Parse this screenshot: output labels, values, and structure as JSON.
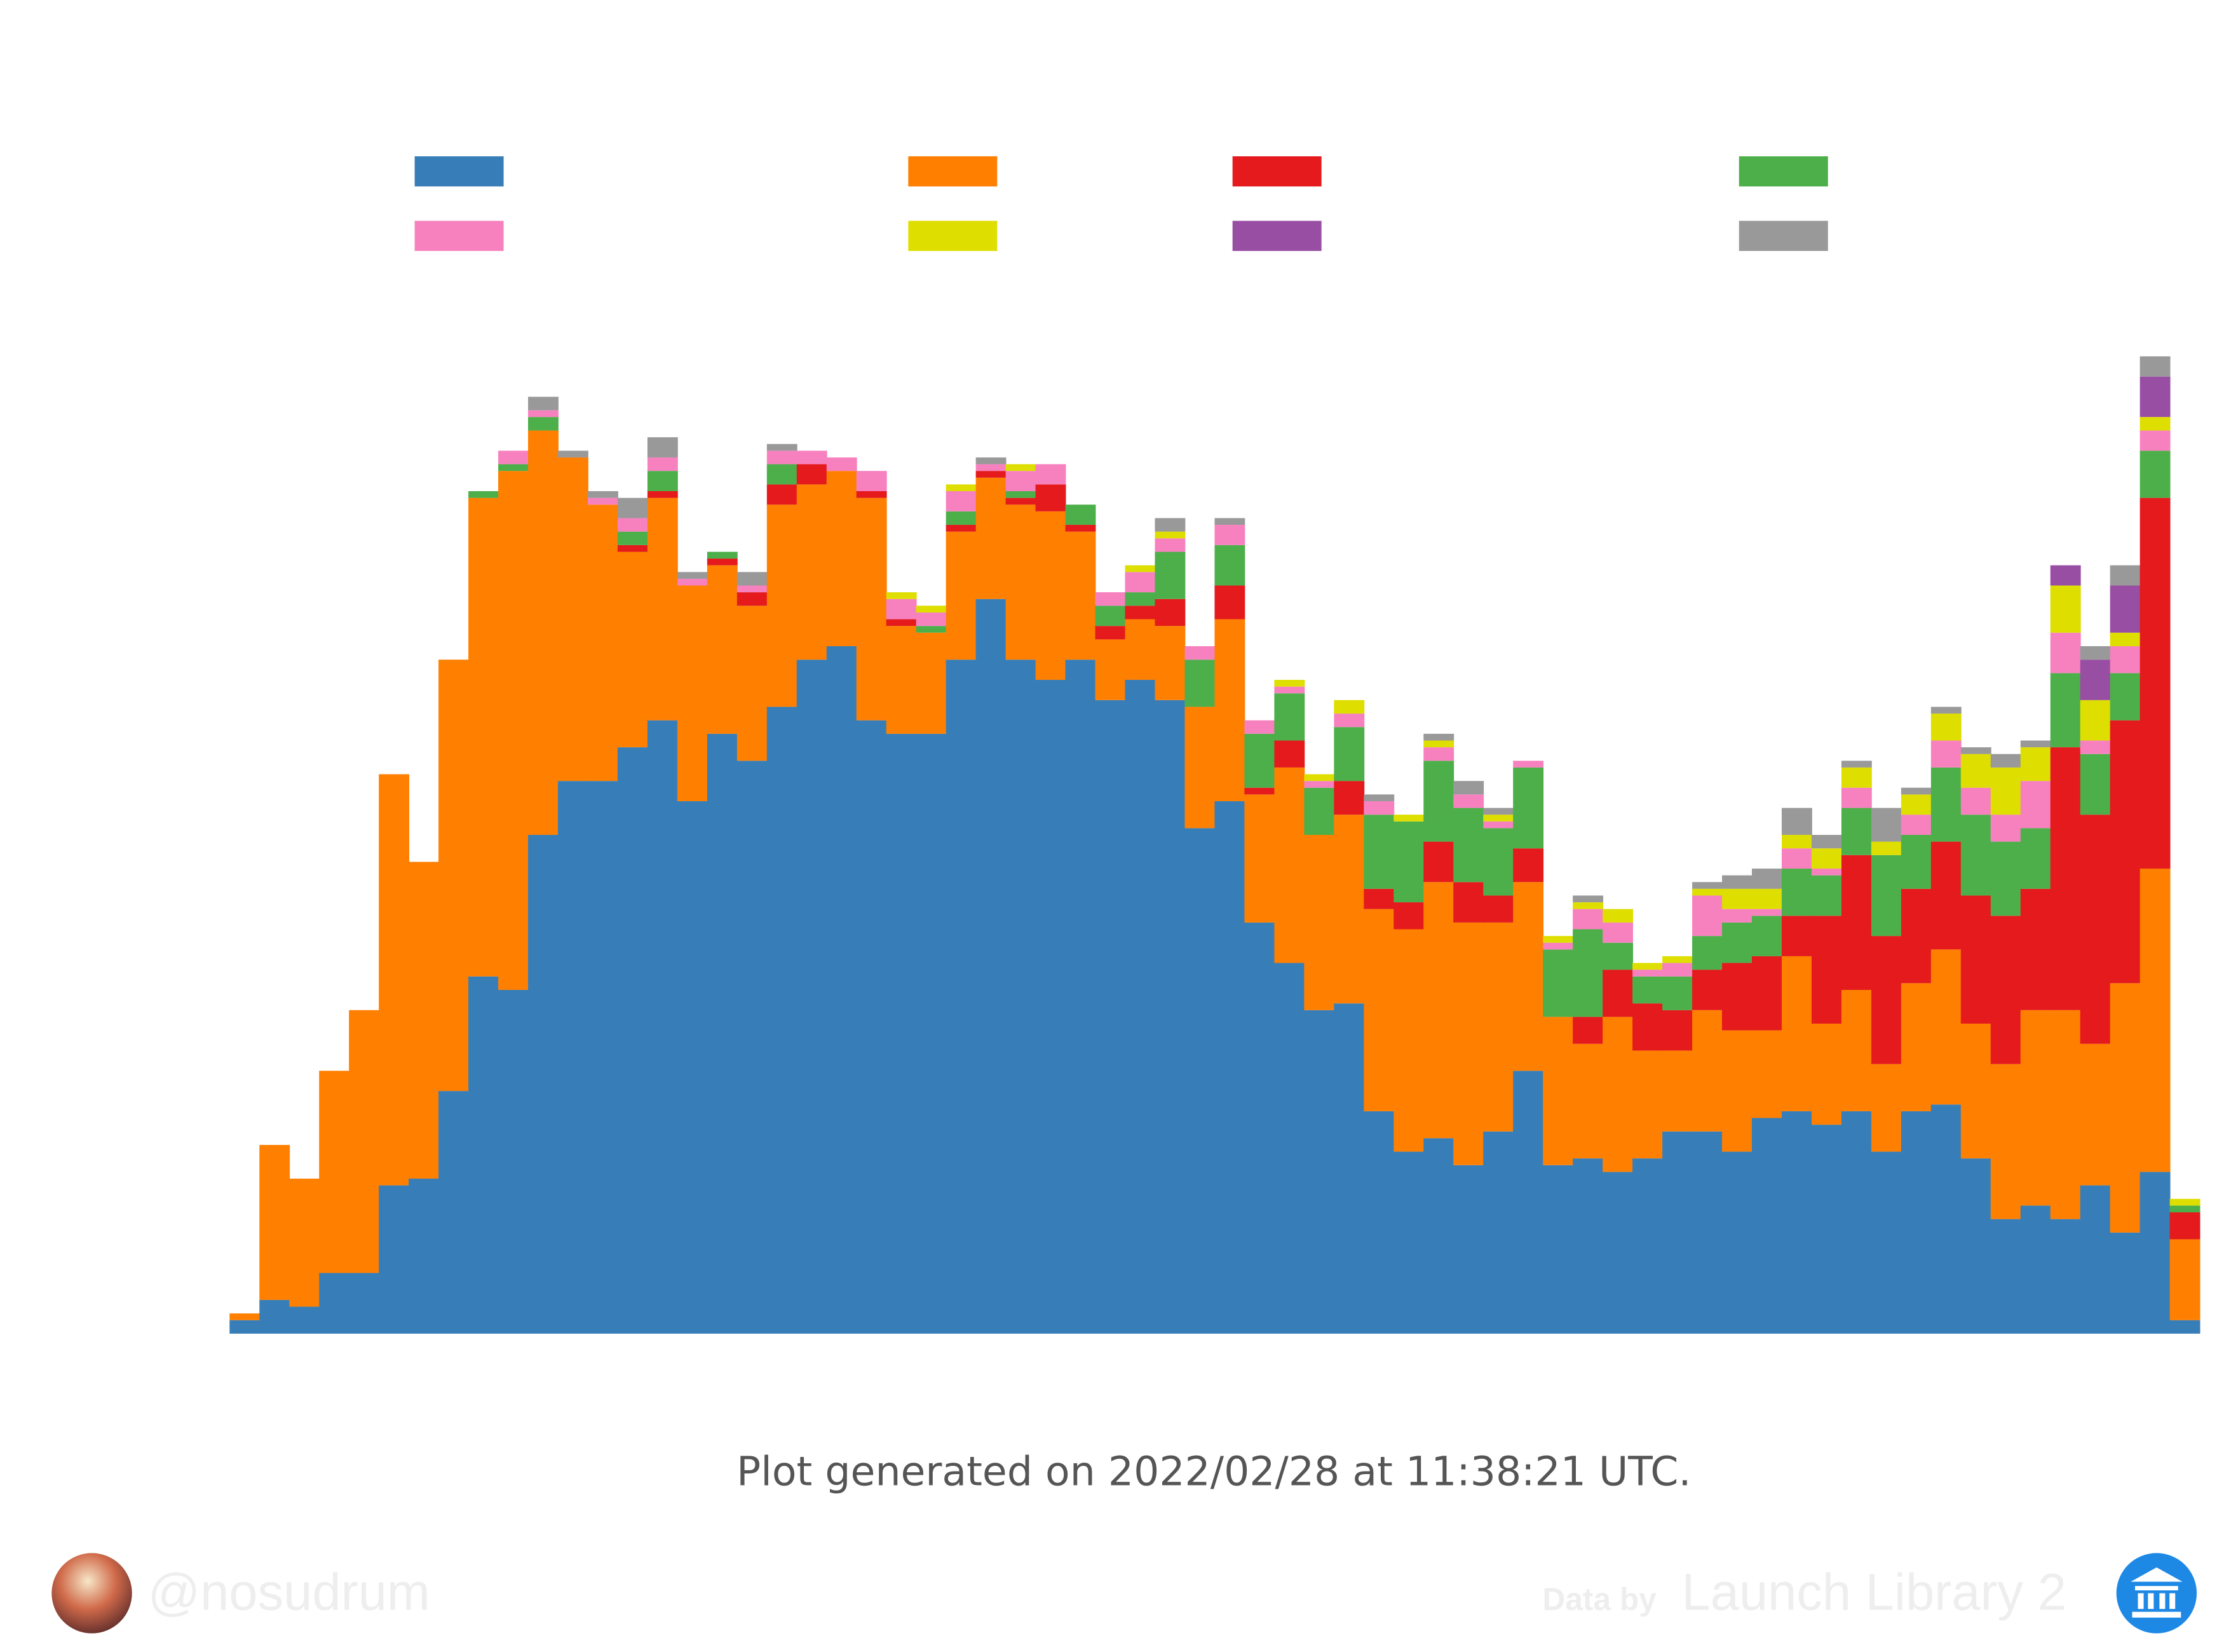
{
  "chart_data": {
    "type": "stacked_bar",
    "categories": [
      null,
      null,
      null,
      null,
      null,
      null,
      null,
      null,
      null,
      null,
      null,
      null,
      null,
      null,
      null,
      null,
      null,
      null,
      null,
      null,
      null,
      null,
      null,
      null,
      null,
      null,
      null,
      null,
      null,
      null,
      null,
      null,
      null,
      null,
      null,
      null,
      null,
      null,
      null,
      null,
      null,
      null,
      null,
      null,
      null,
      null,
      null,
      null,
      null,
      null,
      null,
      null,
      null,
      null,
      null,
      null,
      null,
      null,
      null,
      null,
      null,
      null,
      null,
      null,
      null,
      null
    ],
    "ylim": [
      0,
      160
    ],
    "series": [
      {
        "color": "#377eb8",
        "values": [
          2,
          5,
          4,
          9,
          9,
          22,
          23,
          36,
          53,
          51,
          74,
          82,
          82,
          87,
          91,
          79,
          89,
          85,
          93,
          100,
          102,
          91,
          89,
          89,
          100,
          109,
          100,
          97,
          100,
          94,
          97,
          94,
          75,
          79,
          61,
          55,
          48,
          49,
          33,
          27,
          29,
          25,
          30,
          39,
          25,
          26,
          24,
          26,
          30,
          30,
          27,
          32,
          33,
          31,
          33,
          27,
          33,
          34,
          26,
          17,
          19,
          17,
          22,
          15,
          24,
          2
        ]
      },
      {
        "color": "#ff7f00",
        "values": [
          1,
          23,
          19,
          30,
          39,
          61,
          47,
          64,
          71,
          77,
          60,
          48,
          41,
          29,
          33,
          32,
          25,
          23,
          30,
          26,
          26,
          33,
          16,
          15,
          19,
          18,
          23,
          25,
          19,
          9,
          9,
          11,
          18,
          27,
          19,
          29,
          26,
          28,
          30,
          33,
          38,
          36,
          31,
          28,
          22,
          17,
          23,
          16,
          12,
          18,
          18,
          13,
          23,
          15,
          18,
          13,
          19,
          23,
          20,
          23,
          29,
          31,
          21,
          37,
          45,
          12
        ]
      },
      {
        "color": "#e41a1c",
        "values": [
          0,
          0,
          0,
          0,
          0,
          0,
          0,
          0,
          0,
          0,
          0,
          0,
          0,
          1,
          1,
          0,
          1,
          2,
          3,
          3,
          0,
          1,
          1,
          0,
          1,
          1,
          1,
          4,
          1,
          2,
          2,
          4,
          0,
          5,
          1,
          4,
          0,
          5,
          3,
          4,
          6,
          6,
          4,
          5,
          0,
          4,
          7,
          7,
          6,
          6,
          10,
          11,
          6,
          16,
          20,
          19,
          14,
          16,
          19,
          22,
          18,
          39,
          34,
          39,
          55,
          4
        ]
      },
      {
        "color": "#4daf4a",
        "values": [
          0,
          0,
          0,
          0,
          0,
          0,
          0,
          0,
          1,
          1,
          2,
          0,
          0,
          2,
          3,
          0,
          1,
          0,
          3,
          0,
          0,
          0,
          0,
          1,
          2,
          0,
          1,
          0,
          3,
          3,
          2,
          7,
          7,
          6,
          8,
          7,
          7,
          8,
          11,
          12,
          12,
          11,
          10,
          12,
          10,
          13,
          4,
          4,
          5,
          5,
          6,
          6,
          7,
          6,
          7,
          12,
          8,
          11,
          12,
          11,
          9,
          11,
          9,
          7,
          7,
          1
        ]
      },
      {
        "color": "#f781bf",
        "values": [
          0,
          0,
          0,
          0,
          0,
          0,
          0,
          0,
          0,
          2,
          1,
          0,
          1,
          2,
          2,
          1,
          0,
          1,
          2,
          2,
          2,
          3,
          3,
          2,
          3,
          1,
          3,
          3,
          0,
          2,
          3,
          2,
          2,
          3,
          2,
          1,
          1,
          2,
          2,
          0,
          2,
          2,
          1,
          1,
          1,
          3,
          3,
          1,
          2,
          6,
          2,
          1,
          3,
          1,
          3,
          0,
          3,
          4,
          4,
          4,
          7,
          6,
          2,
          4,
          3,
          0
        ]
      },
      {
        "color": "#dede00",
        "values": [
          0,
          0,
          0,
          0,
          0,
          0,
          0,
          0,
          0,
          0,
          0,
          0,
          0,
          0,
          0,
          0,
          0,
          0,
          0,
          0,
          0,
          0,
          1,
          1,
          1,
          0,
          1,
          0,
          0,
          0,
          1,
          1,
          0,
          0,
          0,
          1,
          1,
          2,
          0,
          1,
          1,
          0,
          1,
          0,
          1,
          1,
          2,
          1,
          1,
          1,
          3,
          3,
          2,
          3,
          3,
          2,
          3,
          4,
          5,
          7,
          5,
          7,
          6,
          2,
          2,
          1
        ]
      },
      {
        "color": "#984ea3",
        "values": [
          0,
          0,
          0,
          0,
          0,
          0,
          0,
          0,
          0,
          0,
          0,
          0,
          0,
          0,
          0,
          0,
          0,
          0,
          0,
          0,
          0,
          0,
          0,
          0,
          0,
          0,
          0,
          0,
          0,
          0,
          0,
          0,
          0,
          0,
          0,
          0,
          0,
          0,
          0,
          0,
          0,
          0,
          0,
          0,
          0,
          0,
          0,
          0,
          0,
          0,
          0,
          0,
          0,
          0,
          0,
          0,
          0,
          0,
          0,
          0,
          0,
          3,
          6,
          7,
          6,
          0
        ]
      },
      {
        "color": "#999999",
        "values": [
          0,
          0,
          0,
          0,
          0,
          0,
          0,
          0,
          0,
          0,
          2,
          1,
          1,
          3,
          3,
          1,
          0,
          2,
          1,
          0,
          0,
          0,
          0,
          0,
          0,
          1,
          0,
          0,
          0,
          0,
          0,
          2,
          0,
          1,
          0,
          0,
          0,
          0,
          1,
          0,
          1,
          2,
          1,
          0,
          0,
          1,
          0,
          0,
          0,
          1,
          2,
          3,
          4,
          2,
          1,
          5,
          1,
          1,
          1,
          2,
          1,
          0,
          2,
          3,
          3,
          0
        ]
      }
    ]
  },
  "footer": {
    "generated": "Plot generated on 2022/02/28 at 11:38:21 UTC.",
    "author": "@nosudrum",
    "credit_prefix": "Data by",
    "credit": "Launch Library 2"
  }
}
